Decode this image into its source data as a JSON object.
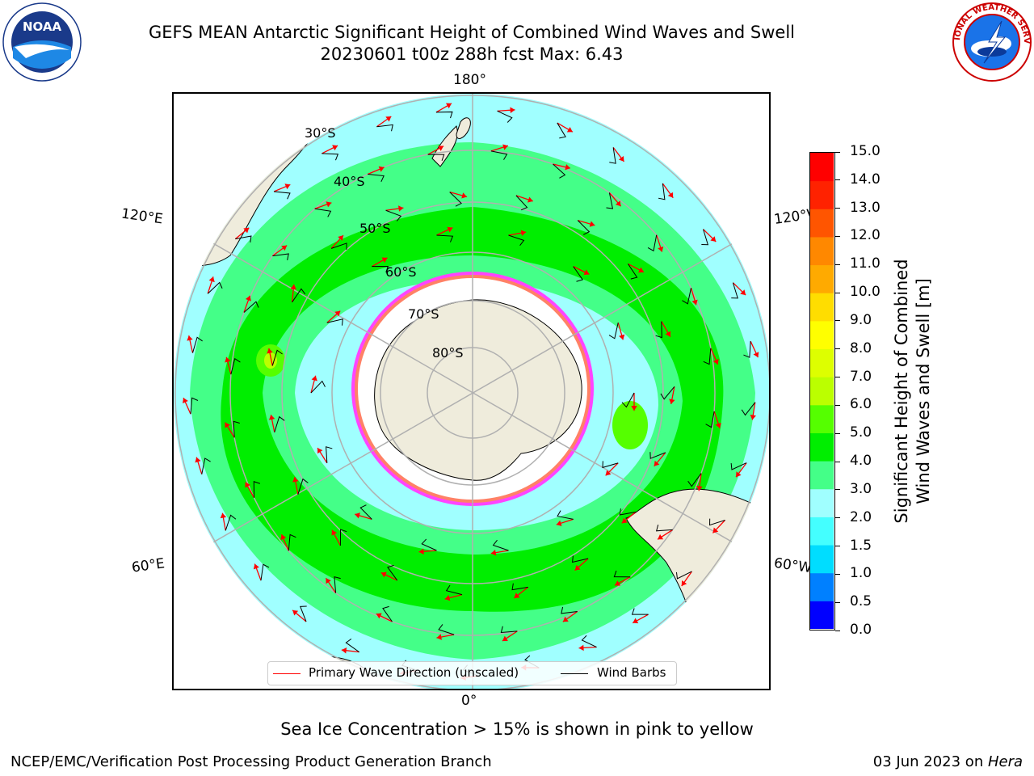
{
  "header": {
    "title_line1": "GEFS MEAN Antarctic Significant Height of Combined Wind Waves and Swell",
    "title_line2": "20230601 t00z 288h fcst   Max: 6.43"
  },
  "logos": {
    "left": {
      "name": "noaa-logo",
      "text": "NOAA",
      "ring_text": "NATIONAL OCEANIC AND ATMOSPHERIC ADMINISTRATION · U.S. DEPARTMENT OF COMMERCE"
    },
    "right": {
      "name": "nws-logo",
      "ring_text": "NATIONAL WEATHER SERVICE"
    }
  },
  "map": {
    "projection": "south-polar-stereographic",
    "lon_labels": {
      "top": "180°",
      "bottom": "0°",
      "upper_left": "120°E",
      "upper_right": "120°W",
      "lower_left": "60°E",
      "lower_right": "60°W"
    },
    "lat_labels": [
      "30°S",
      "40°S",
      "50°S",
      "60°S",
      "70°S",
      "80°S"
    ],
    "colors": {
      "land": "#efecdc",
      "ice_edge": "#ff44ff",
      "wave_arrow": "#ff0000",
      "wind_barb": "#000000",
      "grid": "#b0b0b0"
    }
  },
  "legend": {
    "items": [
      {
        "label": "Primary Wave Direction (unscaled)",
        "color": "#ff0000"
      },
      {
        "label": "Wind Barbs",
        "color": "#000000"
      }
    ]
  },
  "colorbar": {
    "label_line1": "Significant Height of Combined",
    "label_line2": "Wind Waves and Swell [m]",
    "ticks": [
      "0.0",
      "0.5",
      "1.0",
      "1.5",
      "2.0",
      "3.0",
      "4.0",
      "5.0",
      "6.0",
      "7.0",
      "8.0",
      "9.0",
      "10.0",
      "11.0",
      "12.0",
      "13.0",
      "14.0",
      "15.0"
    ],
    "colors": [
      "#0000ff",
      "#0080ff",
      "#00ddff",
      "#44ffff",
      "#a0ffff",
      "#44ff88",
      "#00ee00",
      "#55ff00",
      "#bbff00",
      "#ddff00",
      "#ffff00",
      "#ffdd00",
      "#ffaa00",
      "#ff8800",
      "#ff5500",
      "#ff2200",
      "#ff0000"
    ]
  },
  "chart_data": {
    "type": "heatmap",
    "variable": "Significant Height of Combined Wind Waves and Swell",
    "units": "m",
    "max": 6.43,
    "scale_min": 0.0,
    "scale_max": 15.0
  },
  "footer": {
    "note": "Sea Ice Concentration > 15% is shown in pink to yellow",
    "left": "NCEP/EMC/Verification Post Processing Product Generation Branch",
    "right_prefix": "03 Jun 2023 on ",
    "right_host": "Hera"
  }
}
